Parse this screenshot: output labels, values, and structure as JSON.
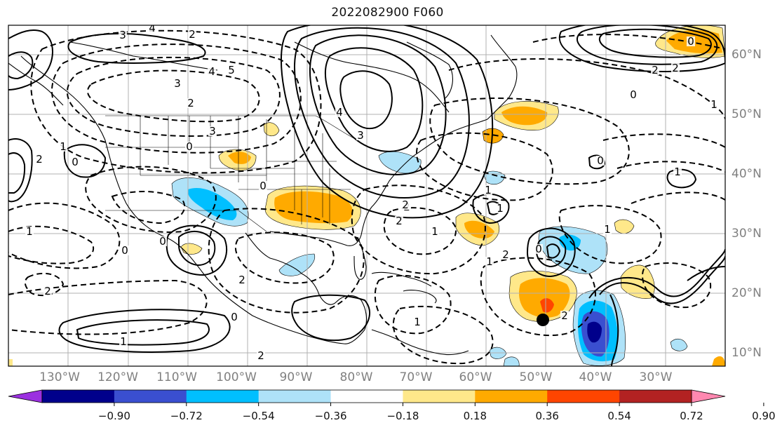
{
  "title": "2022082900 F060",
  "map": {
    "longitude_labels": [
      "130°W",
      "120°W",
      "110°W",
      "100°W",
      "90°W",
      "80°W",
      "70°W",
      "60°W",
      "50°W",
      "40°W",
      "30°W"
    ],
    "latitude_labels": [
      "60°N",
      "50°N",
      "40°N",
      "30°N",
      "20°N",
      "10°N"
    ],
    "contour_labels": [
      "3",
      "4",
      "2",
      "3",
      "2",
      "4",
      "3",
      "4",
      "5",
      "3",
      "2",
      "1",
      "2",
      "1",
      "0",
      "0",
      "1",
      "2",
      "1",
      "2",
      "2",
      "0",
      "0",
      "1",
      "2",
      "0",
      "1",
      "1",
      "1",
      "0",
      "2",
      "2",
      "0",
      "0",
      "1",
      "1",
      "2",
      "1",
      "2",
      "0",
      "0",
      "2"
    ],
    "marker": {
      "name": "black-dot",
      "lon": -50,
      "lat": 15.5,
      "color": "#000000"
    }
  },
  "colorbar": {
    "ticks": [
      "−0.90",
      "−0.72",
      "−0.54",
      "−0.36",
      "−0.18",
      "0.18",
      "0.36",
      "0.54",
      "0.72",
      "0.90"
    ],
    "colors": [
      "#9b30e0",
      "#00008b",
      "#3a4fd0",
      "#00bfff",
      "#aee2f8",
      "#ffffff",
      "#ffe88a",
      "#ffaa00",
      "#ff4500",
      "#b22222",
      "#ff88b0"
    ],
    "extend": "both"
  }
}
